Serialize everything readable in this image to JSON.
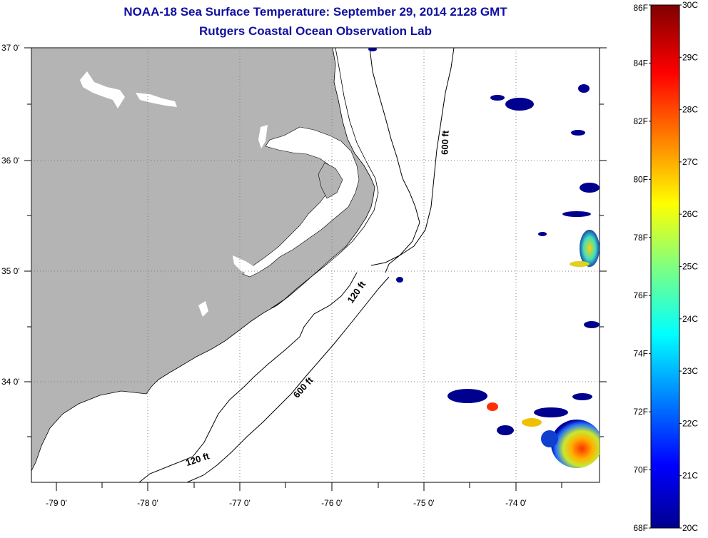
{
  "title": "NOAA-18 Sea Surface Temperature:  September 29, 2014 2128 GMT",
  "subtitle": "Rutgers Coastal Ocean Observation Lab",
  "lon_ticks": [
    "-79 0'",
    "-78 0'",
    "-77 0'",
    "-76 0'",
    "-75 0'",
    "-74 0'"
  ],
  "lat_ticks": [
    "37 0'",
    "36 0'",
    "35 0'",
    "34 0'"
  ],
  "contours": [
    {
      "label": "600 ft",
      "value_ft": 600
    },
    {
      "label": "120 ft",
      "value_ft": 120
    },
    {
      "label": "600 ft",
      "value_ft": 600
    },
    {
      "label": "120 ft",
      "value_ft": 120
    }
  ],
  "colorbar": {
    "fahrenheit": [
      "86F",
      "84F",
      "82F",
      "80F",
      "78F",
      "76F",
      "74F",
      "72F",
      "70F",
      "68F"
    ],
    "celsius": [
      "30C",
      "29C",
      "28C",
      "27C",
      "26C",
      "25C",
      "24C",
      "23C",
      "22C",
      "21C",
      "20C"
    ],
    "min_c": 20,
    "max_c": 30
  },
  "colors": {
    "land": "#b4b4b4",
    "title": "#1010a0",
    "cold": "#00008f",
    "warm": "#800000"
  }
}
